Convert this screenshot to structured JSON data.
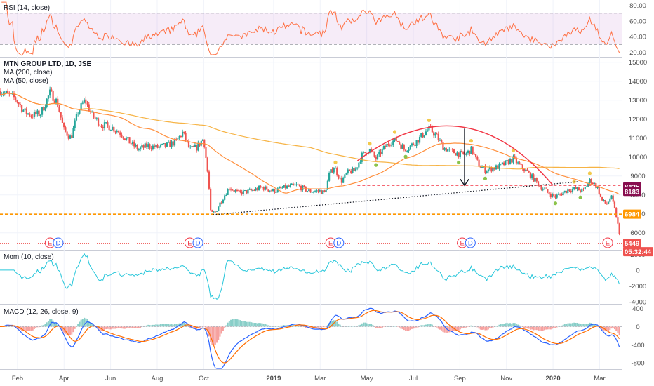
{
  "chart_data": {
    "type": "candlestick",
    "symbol_title": "MTN GROUP LTD, 1D, JSE",
    "indicators": {
      "rsi": {
        "label": "RSI (14, close)",
        "ticks": [
          "80.00",
          "60.00",
          "40.00",
          "20.00"
        ],
        "tick_values": [
          80,
          60,
          40,
          20
        ],
        "band": [
          30,
          70
        ],
        "ylim": [
          15,
          85
        ]
      },
      "ma200": {
        "label": "MA (200, close)"
      },
      "ma50": {
        "label": "MA (50, close)"
      },
      "mom": {
        "label": "Mom (10, close)",
        "ticks": [
          "2000",
          "0",
          "-2000",
          "-4000"
        ],
        "tick_values": [
          2000,
          0,
          -2000,
          -4000
        ],
        "ylim": [
          -4200,
          2400
        ]
      },
      "macd": {
        "label": "MACD (12, 26, close, 9)",
        "ticks": [
          "400",
          "0",
          "-400",
          "-800"
        ],
        "tick_values": [
          400,
          0,
          -400,
          -800
        ],
        "ylim": [
          -920,
          470
        ]
      }
    },
    "price_axis": {
      "ticks": [
        "15000",
        "14000",
        "13000",
        "12000",
        "11000",
        "10000",
        "9000",
        "8000",
        "7000",
        "6000"
      ],
      "tick_values": [
        15000,
        14000,
        13000,
        12000,
        11000,
        10000,
        9000,
        8000,
        7000,
        6000
      ],
      "ylim": [
        5100,
        15250
      ]
    },
    "x_axis": {
      "labels": [
        "Feb",
        "Apr",
        "Jun",
        "Aug",
        "Oct",
        "2019",
        "Mar",
        "May",
        "Jul",
        "Sep",
        "Nov",
        "2020",
        "Mar"
      ],
      "label_months": [
        1,
        3,
        5,
        7,
        9,
        12,
        14,
        16,
        18,
        20,
        22,
        24,
        26
      ],
      "range_months": [
        0.25,
        26.95
      ]
    },
    "price_tags": [
      {
        "text": "8425",
        "value": 8425,
        "color": "#880e4f"
      },
      {
        "text": "8183",
        "value": 8183,
        "color": "#880e4f"
      },
      {
        "text": "6984",
        "value": 6984,
        "color": "#ff9800"
      },
      {
        "text": "5449",
        "value": 5449,
        "color": "#ef5350"
      },
      {
        "text": "05:32:44",
        "value": null,
        "color": "#ef5350"
      }
    ],
    "event_markers": [
      {
        "letter": "E",
        "month": 2.4
      },
      {
        "letter": "D",
        "month": 2.75
      },
      {
        "letter": "E",
        "month": 8.4
      },
      {
        "letter": "D",
        "month": 8.75
      },
      {
        "letter": "E",
        "month": 14.45
      },
      {
        "letter": "D",
        "month": 14.8
      },
      {
        "letter": "E",
        "month": 20.1
      },
      {
        "letter": "D",
        "month": 20.45
      },
      {
        "letter": "E",
        "month": 26.35
      }
    ],
    "close_path": [
      [
        0.25,
        13500
      ],
      [
        0.9,
        13100
      ],
      [
        1.3,
        12400
      ],
      [
        1.6,
        12200
      ],
      [
        2.0,
        12300
      ],
      [
        2.4,
        13400
      ],
      [
        2.7,
        12900
      ],
      [
        3.0,
        11400
      ],
      [
        3.3,
        11000
      ],
      [
        3.6,
        12400
      ],
      [
        3.9,
        13000
      ],
      [
        4.2,
        12200
      ],
      [
        4.6,
        11700
      ],
      [
        5.0,
        11600
      ],
      [
        5.4,
        11300
      ],
      [
        5.8,
        10800
      ],
      [
        6.2,
        10400
      ],
      [
        6.6,
        10600
      ],
      [
        7.0,
        10500
      ],
      [
        7.4,
        10600
      ],
      [
        7.8,
        10800
      ],
      [
        8.1,
        11300
      ],
      [
        8.4,
        10400
      ],
      [
        8.7,
        10500
      ],
      [
        9.0,
        11000
      ],
      [
        9.2,
        8800
      ],
      [
        9.3,
        7000
      ],
      [
        9.5,
        7100
      ],
      [
        9.8,
        7800
      ],
      [
        10.1,
        8400
      ],
      [
        10.5,
        8100
      ],
      [
        11.0,
        8200
      ],
      [
        11.5,
        8400
      ],
      [
        12.0,
        8200
      ],
      [
        12.5,
        8400
      ],
      [
        13.0,
        8500
      ],
      [
        13.5,
        8200
      ],
      [
        14.0,
        8200
      ],
      [
        14.2,
        8100
      ],
      [
        14.4,
        9100
      ],
      [
        14.6,
        9500
      ],
      [
        14.9,
        8700
      ],
      [
        15.2,
        9200
      ],
      [
        15.5,
        9300
      ],
      [
        15.8,
        10100
      ],
      [
        16.1,
        10400
      ],
      [
        16.4,
        9900
      ],
      [
        16.7,
        10400
      ],
      [
        17.0,
        10800
      ],
      [
        17.3,
        10900
      ],
      [
        17.6,
        10400
      ],
      [
        17.9,
        10600
      ],
      [
        18.2,
        10900
      ],
      [
        18.5,
        11300
      ],
      [
        18.7,
        11500
      ],
      [
        19.0,
        11100
      ],
      [
        19.3,
        10500
      ],
      [
        19.6,
        10300
      ],
      [
        19.9,
        10200
      ],
      [
        20.2,
        10100
      ],
      [
        20.5,
        10400
      ],
      [
        20.8,
        9600
      ],
      [
        21.1,
        9300
      ],
      [
        21.4,
        9400
      ],
      [
        21.7,
        9500
      ],
      [
        22.0,
        9700
      ],
      [
        22.3,
        9900
      ],
      [
        22.6,
        9500
      ],
      [
        22.9,
        9200
      ],
      [
        23.2,
        8800
      ],
      [
        23.5,
        8400
      ],
      [
        23.8,
        8100
      ],
      [
        24.1,
        7900
      ],
      [
        24.4,
        8100
      ],
      [
        24.7,
        8300
      ],
      [
        25.0,
        8300
      ],
      [
        25.3,
        8200
      ],
      [
        25.6,
        8800
      ],
      [
        25.9,
        8400
      ],
      [
        26.1,
        7700
      ],
      [
        26.3,
        7500
      ],
      [
        26.5,
        7900
      ],
      [
        26.7,
        7000
      ],
      [
        26.8,
        6300
      ],
      [
        26.9,
        5449
      ]
    ],
    "annotations": {
      "arc": {
        "color": "#f23645",
        "from": [
          15.6,
          9800
        ],
        "apex": [
          20.2,
          11600
        ],
        "to": [
          24.0,
          8500
        ]
      },
      "neckline": {
        "color": "#f23645",
        "from": [
          15.6,
          8500
        ],
        "to": [
          26.9,
          8500
        ]
      },
      "support_line": {
        "color": "#ff9800",
        "value": 6984
      },
      "trendline": {
        "color": "#131722",
        "from": [
          9.4,
          6950
        ],
        "to": [
          25.1,
          8700
        ]
      },
      "arrow": {
        "from": [
          20.2,
          11500
        ],
        "to": [
          20.2,
          8500
        ]
      }
    }
  }
}
